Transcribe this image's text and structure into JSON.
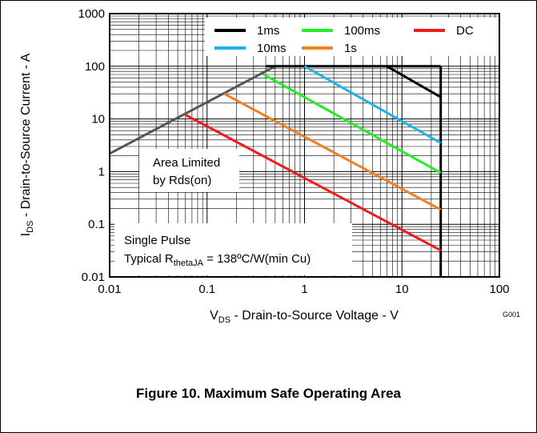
{
  "figure": {
    "caption": "Figure 10. Maximum Safe Operating Area",
    "code": "G001"
  },
  "chart_data": {
    "type": "line",
    "xscale": "log",
    "yscale": "log",
    "xlim": [
      0.01,
      100
    ],
    "ylim": [
      0.01,
      1000
    ],
    "x_ticks": [
      "0.01",
      "0.1",
      "1",
      "10",
      "100"
    ],
    "y_ticks": [
      "0.01",
      "0.1",
      "1",
      "10",
      "100",
      "1000"
    ],
    "xlabel_parts": [
      "V",
      "DS",
      " - Drain-to-Source Voltage - V"
    ],
    "ylabel_parts": [
      "I",
      "DS",
      " - Drain-to-Source Current - A"
    ],
    "grid": true,
    "legend_position": "top-right",
    "series": [
      {
        "name": "1ms",
        "color": "#000000",
        "points": [
          [
            7,
            100
          ],
          [
            25,
            26
          ]
        ]
      },
      {
        "name": "10ms",
        "color": "#1fb0e8",
        "points": [
          [
            1,
            100
          ],
          [
            25,
            3.5
          ]
        ]
      },
      {
        "name": "100ms",
        "color": "#22ee22",
        "points": [
          [
            0.38,
            70
          ],
          [
            25,
            0.95
          ]
        ]
      },
      {
        "name": "1s",
        "color": "#f08020",
        "points": [
          [
            0.15,
            30
          ],
          [
            25,
            0.19
          ]
        ]
      },
      {
        "name": "DC",
        "color": "#ee1c1c",
        "points": [
          [
            0.06,
            12
          ],
          [
            25,
            0.032
          ]
        ]
      }
    ],
    "limits": [
      {
        "name": "Rds(on) limit",
        "color": "#555555",
        "points": [
          [
            0.01,
            2.2
          ],
          [
            0.5,
            100
          ]
        ]
      },
      {
        "name": "Current limit",
        "color": "#000000",
        "points": [
          [
            0.4,
            100
          ],
          [
            25,
            100
          ]
        ]
      },
      {
        "name": "Voltage limit",
        "color": "#000000",
        "points": [
          [
            25,
            0.01
          ],
          [
            25,
            100
          ]
        ]
      }
    ],
    "annotations": {
      "area_limited_line1": "Area Limited",
      "area_limited_line2": "by Rds(on)",
      "single_pulse": "Single Pulse",
      "typical_prefix": "Typical R",
      "typical_sub": "thetaJA",
      "typical_suffix": " = 138ºC/W(min Cu)"
    }
  }
}
